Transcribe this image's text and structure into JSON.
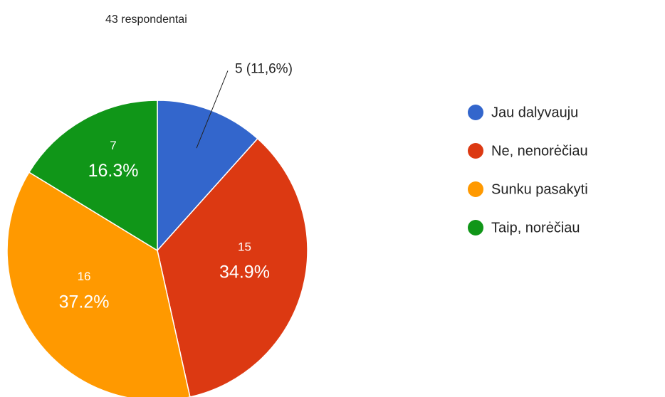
{
  "chart_data": {
    "type": "pie",
    "title": "43 respondentai",
    "categories": [
      "Jau dalyvauju",
      "Ne, nenorėčiau",
      "Sunku pasakyti",
      "Taip, norėčiau"
    ],
    "values": [
      5,
      15,
      16,
      7
    ],
    "value_labels": [
      "5 (11,6%)",
      "15",
      "16",
      "7"
    ],
    "percent_labels": [
      null,
      "34.9%",
      "37.2%",
      "16.3%"
    ],
    "colors": [
      "#3366cc",
      "#dc3912",
      "#ff9900",
      "#109618"
    ],
    "legend": "right"
  }
}
